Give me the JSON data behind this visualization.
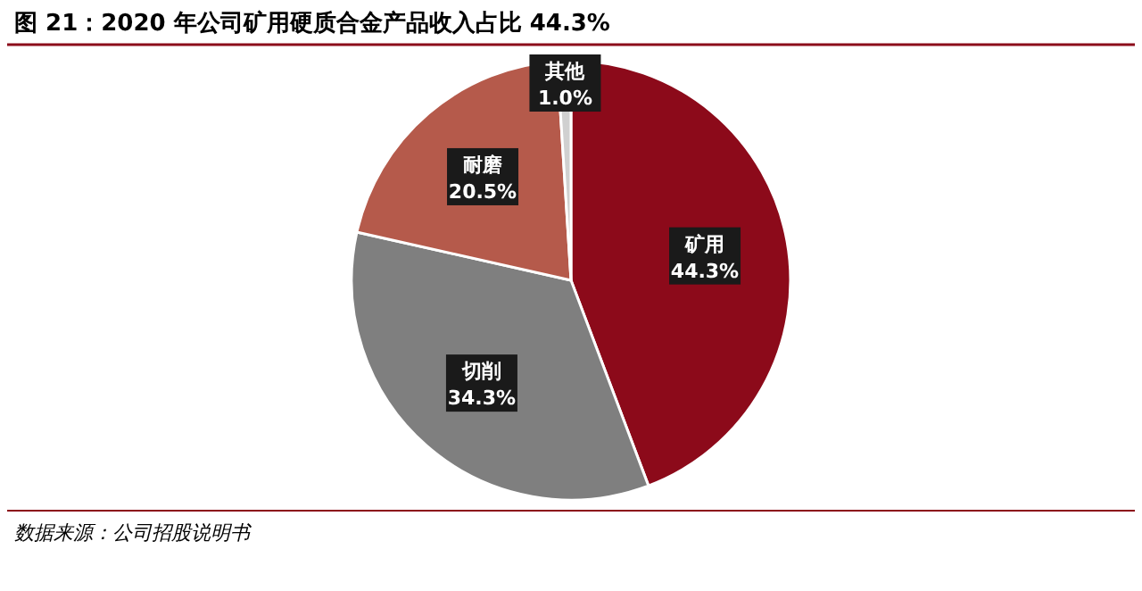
{
  "chart_data": {
    "type": "pie",
    "title": "图 21：2020 年公司矿用硬质合金产品收入占比 44.3%",
    "categories": [
      "矿用",
      "切削",
      "耐磨",
      "其他"
    ],
    "values": [
      44.3,
      34.3,
      20.5,
      1.0
    ],
    "colors": [
      "#8c0a1a",
      "#7f7f7f",
      "#b55a4b",
      "#d0d0d0"
    ],
    "value_labels": [
      "44.3%",
      "34.3%",
      "20.5%",
      "1.0%"
    ],
    "annotations": [
      "数据来源：公司招股说明书"
    ]
  }
}
